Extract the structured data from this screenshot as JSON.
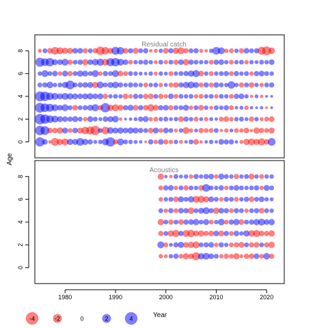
{
  "chart_data": {
    "type": "scatter",
    "subtype": "bubble residual plot",
    "ylabel": "Age",
    "xlabel": "",
    "x_ticks": [
      1980,
      1990,
      2000,
      2010,
      2020
    ],
    "xlim": [
      1974,
      2023.5
    ],
    "y_ticks": [
      0,
      2,
      4,
      6,
      8
    ],
    "ylim": [
      -1.4,
      9.4
    ],
    "colors": {
      "positive": "#0000ff",
      "negative": "#ff0000",
      "frame": "#000000",
      "panel_title": "#808080"
    },
    "bubble_opacity": 0.5,
    "panels": [
      {
        "title": "Residual catch",
        "years": [
          1975,
          2021
        ],
        "ages": [
          0,
          1,
          2,
          3,
          4,
          5,
          6,
          7,
          8
        ],
        "residuals": [
          [
            2.2,
            0.8,
            -0.3,
            -1.6,
            -1.0,
            -1.2,
            1.0,
            0.9,
            1.5,
            1.0,
            0.7,
            0.4,
            0.5,
            1.2,
            2.2,
            -0.7,
            1.2,
            0.6,
            0.5,
            0.4,
            0.3,
            -0.2,
            0.7,
            -0.5,
            0.8,
            -0.7,
            -0.5,
            0.5,
            -0.4,
            0.3,
            0.6,
            -0.8,
            -0.3,
            0.3,
            0.5,
            0.3,
            0.8,
            0.7,
            0.7,
            0.3,
            -0.4,
            -1.0,
            -1.2,
            -1.0,
            -1.3,
            -0.8,
            1.5
          ],
          [
            2.3,
            2.0,
            -0.8,
            -0.8,
            -1.0,
            0.9,
            -0.6,
            0.8,
            -0.9,
            -1.4,
            -1.6,
            -2.2,
            0.6,
            -1.5,
            1.1,
            0.9,
            1.0,
            0.8,
            1.0,
            0.9,
            0.7,
            0.6,
            -0.8,
            0.9,
            -0.6,
            0.8,
            0.6,
            -0.4,
            0.5,
            -1.2,
            -0.5,
            0.4,
            -0.7,
            -0.6,
            -0.6,
            0.6,
            -0.3,
            -0.5,
            0.4,
            -0.6,
            -0.5,
            -0.8,
            -0.3,
            -1.0,
            -0.7,
            -0.6,
            -0.9
          ],
          [
            2.8,
            2.2,
            1.5,
            1.2,
            0.9,
            0.8,
            0.7,
            0.9,
            0.6,
            -0.5,
            0.9,
            0.6,
            0.4,
            0.8,
            0.9,
            1.1,
            -0.3,
            0.2,
            0.3,
            0.4,
            0.7,
            0.9,
            -0.5,
            -0.6,
            0.5,
            0.6,
            0.4,
            0.5,
            -0.8,
            0.7,
            0.5,
            -0.6,
            0.4,
            -0.5,
            0.4,
            0.3,
            -0.6,
            -0.8,
            -0.5,
            0.5,
            0.6,
            0.4,
            -0.7,
            0.5,
            -0.4,
            -0.6,
            -0.8
          ],
          [
            2.4,
            1.9,
            1.6,
            1.2,
            0.8,
            1.2,
            0.6,
            -0.8,
            0.6,
            0.7,
            0.9,
            1.3,
            -0.7,
            2.2,
            -1.0,
            -1.2,
            -0.9,
            0.7,
            0.9,
            -0.8,
            0.7,
            -0.8,
            -1.3,
            -0.9,
            0.7,
            0.8,
            -0.7,
            0.6,
            0.6,
            0.9,
            -0.5,
            0.6,
            -0.8,
            0.5,
            -0.4,
            0.6,
            0.5,
            0.7,
            -0.6,
            0.3,
            0.4,
            -0.5,
            0.3,
            0.2,
            0.3,
            -0.2,
            0.2
          ],
          [
            2.5,
            2.3,
            1.4,
            1.2,
            0.9,
            1.2,
            1.0,
            0.9,
            0.8,
            0.9,
            1.0,
            0.8,
            0.9,
            -0.7,
            0.5,
            0.6,
            0.5,
            -0.8,
            -0.5,
            0.7,
            0.6,
            -0.7,
            -0.8,
            0.6,
            -0.7,
            -0.5,
            0.8,
            -0.6,
            0.6,
            0.5,
            0.6,
            -0.5,
            -0.6,
            0.5,
            0.6,
            -0.5,
            0.6,
            0.5,
            -0.6,
            0.7,
            0.8,
            0.5,
            -0.3,
            0.4,
            -0.3,
            0.2,
            0.2
          ],
          [
            0.6,
            0.7,
            1.1,
            0.5,
            0.6,
            1.0,
            2.0,
            0.6,
            0.7,
            0.8,
            0.9,
            -1.0,
            1.2,
            0.6,
            0.9,
            1.1,
            0.7,
            0.5,
            0.7,
            0.6,
            0.5,
            -0.6,
            0.5,
            0.6,
            -0.5,
            0.4,
            -0.6,
            -0.8,
            0.7,
            1.0,
            1.2,
            0.9,
            -0.6,
            0.7,
            -0.6,
            0.8,
            0.6,
            0.5,
            1.4,
            0.5,
            -0.7,
            0.6,
            -0.8,
            0.5,
            -0.5,
            0.6,
            0.7
          ],
          [
            0.5,
            1.2,
            0.6,
            0.8,
            -0.5,
            0.9,
            -0.7,
            0.6,
            1.0,
            0.9,
            0.6,
            1.2,
            -0.5,
            0.7,
            0.6,
            1.2,
            -0.8,
            -0.6,
            0.6,
            0.5,
            0.4,
            0.3,
            0.5,
            -0.4,
            0.5,
            0.4,
            -0.6,
            0.5,
            0.6,
            0.7,
            1.0,
            1.3,
            -0.8,
            0.5,
            -0.6,
            0.5,
            0.6,
            0.7,
            -0.6,
            0.7,
            0.5,
            0.6,
            -0.5,
            0.7,
            0.8,
            0.6,
            0.5
          ],
          [
            2.1,
            1.5,
            1.8,
            0.9,
            0.8,
            1.2,
            -0.7,
            0.6,
            0.7,
            -1.0,
            0.8,
            1.1,
            1.3,
            -1.2,
            1.6,
            1.8,
            1.2,
            0.8,
            -0.6,
            0.5,
            0.6,
            0.7,
            0.5,
            -0.4,
            0.6,
            -0.5,
            0.6,
            -0.7,
            0.8,
            -1.0,
            0.7,
            0.6,
            0.5,
            0.5,
            -0.6,
            0.7,
            0.8,
            0.5,
            -0.6,
            0.5,
            0.6,
            -0.5,
            0.5,
            0.4,
            0.6,
            0.5,
            0.8
          ],
          [
            -0.4,
            0.6,
            -0.8,
            -1.5,
            -1.2,
            -1.0,
            -0.9,
            0.8,
            0.8,
            -0.7,
            0.6,
            -0.7,
            -1.8,
            -1.4,
            -0.9,
            1.6,
            1.4,
            -0.8,
            0.7,
            -0.9,
            0.6,
            0.7,
            -0.3,
            -0.4,
            0.5,
            -0.8,
            0.7,
            -1.0,
            -1.2,
            -0.7,
            0.6,
            0.7,
            -0.4,
            -0.3,
            0.5,
            1.5,
            1.2,
            -0.5,
            -0.6,
            0.5,
            -0.7,
            0.8,
            0.6,
            0.7,
            -1.6,
            -2.0,
            -1.1
          ]
        ]
      },
      {
        "title": "Acoustics",
        "years": [
          1999,
          2021
        ],
        "ages": [
          1,
          2,
          3,
          4,
          5,
          6,
          7,
          8
        ],
        "residuals": [
          [
            -0.5,
            -0.4,
            0.5,
            0.7,
            -0.6,
            -1.0,
            -0.8,
            -1.6,
            1.0,
            1.2,
            0.8,
            0.6,
            -0.5,
            -0.7,
            -0.6,
            -1.0,
            -0.4,
            -0.7,
            -0.8,
            0.8,
            -0.6,
            1.1,
            -0.7
          ],
          [
            1.2,
            -0.6,
            0.4,
            0.7,
            1.0,
            -0.8,
            -1.0,
            -1.2,
            0.6,
            0.7,
            0.8,
            -0.5,
            0.7,
            0.5,
            -0.6,
            -0.7,
            -0.9,
            0.6,
            -0.7,
            -0.8,
            0.6,
            -0.7,
            -1.0
          ],
          [
            -0.7,
            0.6,
            -1.0,
            -1.3,
            0.7,
            -1.2,
            -1.4,
            -0.9,
            -1.0,
            -0.7,
            -0.8,
            0.8,
            -0.9,
            0.7,
            -0.6,
            0.8,
            0.5,
            1.0,
            -1.1,
            -1.3,
            -0.8,
            -0.7,
            -1.0
          ],
          [
            -1.0,
            0.6,
            -0.7,
            0.6,
            -0.8,
            0.7,
            0.8,
            1.0,
            0.6,
            0.9,
            -0.6,
            0.5,
            1.1,
            -0.6,
            0.7,
            1.0,
            -0.8,
            0.6,
            0.7,
            1.0,
            1.2,
            0.8,
            1.0
          ],
          [
            0.6,
            -0.5,
            0.7,
            -0.6,
            0.8,
            0.7,
            -1.1,
            0.6,
            0.9,
            1.2,
            0.7,
            -1.0,
            0.8,
            0.7,
            -0.6,
            0.7,
            0.6,
            -0.5,
            0.6,
            0.7,
            -0.8,
            0.6,
            0.5
          ],
          [
            -0.5,
            0.5,
            0.6,
            -0.8,
            0.9,
            0.6,
            1.0,
            -1.2,
            -1.3,
            -1.0,
            0.8,
            0.6,
            -0.5,
            0.7,
            0.6,
            -0.6,
            0.5,
            0.7,
            -0.8,
            0.6,
            0.8,
            0.5,
            0.4
          ],
          [
            -0.6,
            0.7,
            0.8,
            -0.5,
            0.6,
            -0.7,
            0.6,
            0.5,
            -0.8,
            1.5,
            0.6,
            0.5,
            0.7,
            -0.5,
            0.6,
            0.8,
            0.6,
            0.5,
            0.6,
            0.7,
            -0.5,
            0.9,
            0.6
          ],
          [
            -1.0,
            0.3,
            -0.3,
            0.6,
            0.4,
            0.5,
            -0.5,
            0.7,
            0.5,
            0.7,
            0.8,
            -0.5,
            0.9,
            0.6,
            0.5,
            -0.7,
            0.5,
            0.6,
            -0.9,
            0.5,
            -0.6,
            0.5,
            0.5
          ]
        ]
      }
    ],
    "legend": {
      "values": [
        -4,
        -2,
        0,
        2,
        4
      ],
      "labels": [
        "-4",
        "-2",
        "0",
        "2",
        "4"
      ],
      "title": "Year"
    }
  }
}
